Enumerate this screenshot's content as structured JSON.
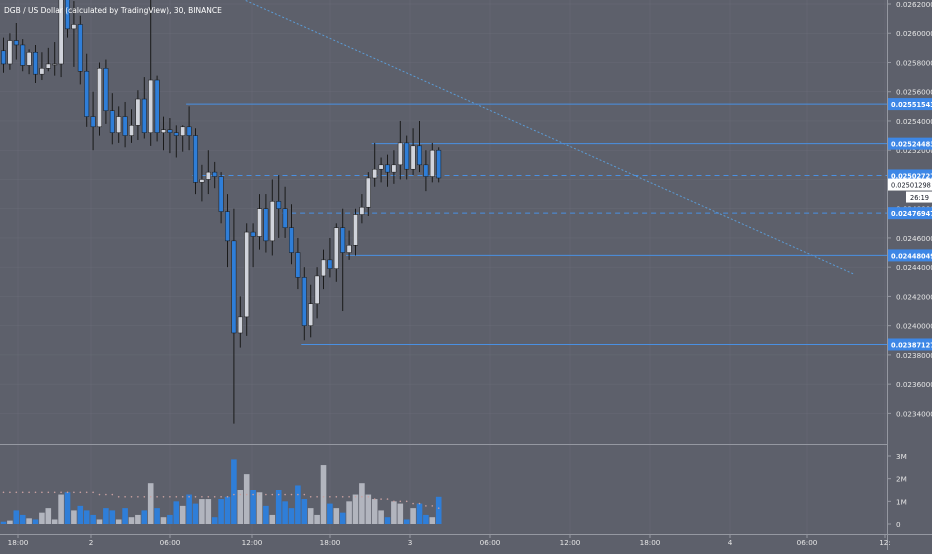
{
  "header": {
    "title": "DGB / US Dollar (calculated by TradingView), 30, BINANCE"
  },
  "colors": {
    "background": "#5d606b",
    "up": "#d1d4dc",
    "down": "#2f7ed8",
    "level_line": "#4a90e2",
    "label_bg": "#3d87e6",
    "last_price_bg": "#ffffff",
    "trendline": "#5b9bd5",
    "grid": "#777a85",
    "axis_text": "#e6e6e6"
  },
  "chart_data": {
    "type": "candlestick",
    "symbol": "DGB / US Dollar",
    "interval": "30",
    "exchange": "BINANCE",
    "ylim": [
      0.0233,
      0.0262
    ],
    "y_ticks": [
      "0.02340000",
      "0.02360000",
      "0.02380000",
      "0.02400000",
      "0.02420000",
      "0.02440000",
      "0.02460000",
      "0.02480000",
      "0.02500000",
      "0.02520000",
      "0.02540000",
      "0.02560000",
      "0.02580000",
      "0.02600000",
      "0.02620000"
    ],
    "x_ticks": [
      "18:00",
      "2",
      "06:00",
      "12:00",
      "18:00",
      "3",
      "06:00",
      "12:00",
      "18:00",
      "4",
      "06:00",
      "12:"
    ],
    "candles": [
      {
        "o": 0.02588,
        "h": 0.02597,
        "l": 0.02573,
        "c": 0.02579
      },
      {
        "o": 0.02579,
        "h": 0.026,
        "l": 0.02575,
        "c": 0.02595
      },
      {
        "o": 0.02595,
        "h": 0.02607,
        "l": 0.02582,
        "c": 0.02592
      },
      {
        "o": 0.02592,
        "h": 0.02596,
        "l": 0.02574,
        "c": 0.02578
      },
      {
        "o": 0.02578,
        "h": 0.02589,
        "l": 0.02572,
        "c": 0.02587
      },
      {
        "o": 0.02587,
        "h": 0.02592,
        "l": 0.02566,
        "c": 0.02572
      },
      {
        "o": 0.02572,
        "h": 0.02587,
        "l": 0.02568,
        "c": 0.02576
      },
      {
        "o": 0.02576,
        "h": 0.0259,
        "l": 0.02574,
        "c": 0.02579
      },
      {
        "o": 0.02579,
        "h": 0.02594,
        "l": 0.02571,
        "c": 0.02579
      },
      {
        "o": 0.02579,
        "h": 0.0263,
        "l": 0.0257,
        "c": 0.02624
      },
      {
        "o": 0.02624,
        "h": 0.02635,
        "l": 0.02597,
        "c": 0.02603
      },
      {
        "o": 0.02603,
        "h": 0.02622,
        "l": 0.02577,
        "c": 0.02606
      },
      {
        "o": 0.02606,
        "h": 0.02612,
        "l": 0.02565,
        "c": 0.02574
      },
      {
        "o": 0.02574,
        "h": 0.02586,
        "l": 0.02536,
        "c": 0.02543
      },
      {
        "o": 0.02543,
        "h": 0.0256,
        "l": 0.0252,
        "c": 0.02536
      },
      {
        "o": 0.02536,
        "h": 0.0258,
        "l": 0.0253,
        "c": 0.02576
      },
      {
        "o": 0.02576,
        "h": 0.02582,
        "l": 0.02538,
        "c": 0.02547
      },
      {
        "o": 0.02547,
        "h": 0.02559,
        "l": 0.02524,
        "c": 0.02532
      },
      {
        "o": 0.02532,
        "h": 0.0255,
        "l": 0.02525,
        "c": 0.02543
      },
      {
        "o": 0.02543,
        "h": 0.02553,
        "l": 0.02522,
        "c": 0.0253
      },
      {
        "o": 0.0253,
        "h": 0.02548,
        "l": 0.02525,
        "c": 0.02537
      },
      {
        "o": 0.02537,
        "h": 0.02561,
        "l": 0.02527,
        "c": 0.02555
      },
      {
        "o": 0.02555,
        "h": 0.0257,
        "l": 0.02528,
        "c": 0.02532
      },
      {
        "o": 0.02532,
        "h": 0.02625,
        "l": 0.02523,
        "c": 0.02568
      },
      {
        "o": 0.02568,
        "h": 0.02571,
        "l": 0.02526,
        "c": 0.02532
      },
      {
        "o": 0.02532,
        "h": 0.02543,
        "l": 0.0252,
        "c": 0.02534
      },
      {
        "o": 0.02534,
        "h": 0.02542,
        "l": 0.02518,
        "c": 0.02532
      },
      {
        "o": 0.02532,
        "h": 0.02537,
        "l": 0.02515,
        "c": 0.0253
      },
      {
        "o": 0.0253,
        "h": 0.02537,
        "l": 0.02519,
        "c": 0.02536
      },
      {
        "o": 0.02536,
        "h": 0.0255,
        "l": 0.0252,
        "c": 0.0253
      },
      {
        "o": 0.0253,
        "h": 0.02535,
        "l": 0.0249,
        "c": 0.02498
      },
      {
        "o": 0.02498,
        "h": 0.0251,
        "l": 0.02485,
        "c": 0.025
      },
      {
        "o": 0.025,
        "h": 0.0252,
        "l": 0.0249,
        "c": 0.02505
      },
      {
        "o": 0.02505,
        "h": 0.02512,
        "l": 0.02494,
        "c": 0.02502
      },
      {
        "o": 0.02502,
        "h": 0.02505,
        "l": 0.0247,
        "c": 0.02478
      },
      {
        "o": 0.02478,
        "h": 0.0249,
        "l": 0.0244,
        "c": 0.02458
      },
      {
        "o": 0.02458,
        "h": 0.0248,
        "l": 0.02333,
        "c": 0.02395
      },
      {
        "o": 0.02395,
        "h": 0.0242,
        "l": 0.02385,
        "c": 0.02406
      },
      {
        "o": 0.02406,
        "h": 0.0247,
        "l": 0.02393,
        "c": 0.02464
      },
      {
        "o": 0.02464,
        "h": 0.0247,
        "l": 0.0244,
        "c": 0.02461
      },
      {
        "o": 0.02461,
        "h": 0.0249,
        "l": 0.02452,
        "c": 0.0248
      },
      {
        "o": 0.0248,
        "h": 0.0249,
        "l": 0.0245,
        "c": 0.02458
      },
      {
        "o": 0.02458,
        "h": 0.025,
        "l": 0.02448,
        "c": 0.02485
      },
      {
        "o": 0.02485,
        "h": 0.02503,
        "l": 0.0246,
        "c": 0.0248
      },
      {
        "o": 0.0248,
        "h": 0.02495,
        "l": 0.0246,
        "c": 0.02467
      },
      {
        "o": 0.02467,
        "h": 0.02483,
        "l": 0.02442,
        "c": 0.0245
      },
      {
        "o": 0.0245,
        "h": 0.0246,
        "l": 0.02425,
        "c": 0.02433
      },
      {
        "o": 0.02433,
        "h": 0.0244,
        "l": 0.0239,
        "c": 0.024
      },
      {
        "o": 0.024,
        "h": 0.02428,
        "l": 0.02392,
        "c": 0.02415
      },
      {
        "o": 0.02415,
        "h": 0.0244,
        "l": 0.02405,
        "c": 0.02434
      },
      {
        "o": 0.02434,
        "h": 0.02452,
        "l": 0.02425,
        "c": 0.02445
      },
      {
        "o": 0.02445,
        "h": 0.0246,
        "l": 0.02433,
        "c": 0.02439
      },
      {
        "o": 0.02439,
        "h": 0.0247,
        "l": 0.0243,
        "c": 0.02467
      },
      {
        "o": 0.02467,
        "h": 0.0248,
        "l": 0.0241,
        "c": 0.0245
      },
      {
        "o": 0.0245,
        "h": 0.02465,
        "l": 0.02445,
        "c": 0.02455
      },
      {
        "o": 0.02455,
        "h": 0.0248,
        "l": 0.02448,
        "c": 0.02476
      },
      {
        "o": 0.02476,
        "h": 0.0249,
        "l": 0.0247,
        "c": 0.02481
      },
      {
        "o": 0.02481,
        "h": 0.02505,
        "l": 0.02475,
        "c": 0.02501
      },
      {
        "o": 0.02501,
        "h": 0.02525,
        "l": 0.02495,
        "c": 0.02507
      },
      {
        "o": 0.02507,
        "h": 0.02515,
        "l": 0.02498,
        "c": 0.0251
      },
      {
        "o": 0.0251,
        "h": 0.02517,
        "l": 0.02495,
        "c": 0.02505
      },
      {
        "o": 0.02505,
        "h": 0.0252,
        "l": 0.02497,
        "c": 0.0251
      },
      {
        "o": 0.0251,
        "h": 0.0254,
        "l": 0.025,
        "c": 0.02525
      },
      {
        "o": 0.02525,
        "h": 0.0253,
        "l": 0.025,
        "c": 0.02507
      },
      {
        "o": 0.02507,
        "h": 0.02535,
        "l": 0.02503,
        "c": 0.02523
      },
      {
        "o": 0.02523,
        "h": 0.0254,
        "l": 0.02505,
        "c": 0.0251
      },
      {
        "o": 0.0251,
        "h": 0.0252,
        "l": 0.02492,
        "c": 0.02502
      },
      {
        "o": 0.02502,
        "h": 0.02525,
        "l": 0.02498,
        "c": 0.0252
      },
      {
        "o": 0.0252,
        "h": 0.02522,
        "l": 0.02498,
        "c": 0.02501
      }
    ],
    "volume": {
      "axis_ticks": [
        "3M",
        "2M",
        "1M",
        "0"
      ],
      "max": 3200000,
      "values": [
        100000,
        150000,
        600000,
        400000,
        250000,
        200000,
        500000,
        700000,
        200000,
        1300000,
        1400000,
        600000,
        800000,
        600000,
        400000,
        200000,
        700000,
        600000,
        200000,
        700000,
        300000,
        400000,
        600000,
        1800000,
        700000,
        300000,
        400000,
        1000000,
        800000,
        1300000,
        900000,
        1100000,
        1100000,
        300000,
        1100000,
        1200000,
        2850000,
        1500000,
        2200000,
        1500000,
        1400000,
        800000,
        400000,
        1500000,
        1000000,
        700000,
        1700000,
        1100000,
        700000,
        400000,
        2600000,
        900000,
        700000,
        500000,
        1000000,
        1300000,
        1800000,
        1300000,
        1100000,
        600000,
        300000,
        1000000,
        900000,
        200000,
        700000,
        900000,
        400000,
        300000,
        1200000
      ],
      "ma": [
        1400000,
        1400000,
        1400000,
        1400000,
        1400000,
        1400000,
        1400000,
        1400000,
        1400000,
        1400000,
        1400000,
        1400000,
        1400000,
        1400000,
        1400000,
        1300000,
        1300000,
        1300000,
        1200000,
        1200000,
        1200000,
        1200000,
        1200000,
        1200000,
        1200000,
        1200000,
        1200000,
        1200000,
        1200000,
        1200000,
        1200000,
        1200000,
        1200000,
        1200000,
        1200000,
        1200000,
        1300000,
        1300000,
        1300000,
        1300000,
        1300000,
        1300000,
        1300000,
        1300000,
        1300000,
        1300000,
        1300000,
        1300000,
        1200000,
        1200000,
        1200000,
        1200000,
        1200000,
        1200000,
        1200000,
        1200000,
        1200000,
        1200000,
        1100000,
        1100000,
        1100000,
        1000000,
        1000000,
        1000000,
        900000,
        900000,
        800000,
        800000,
        700000
      ]
    },
    "levels": [
      {
        "value": "0.02551543",
        "price": 0.02551543,
        "style": "solid",
        "from_index": 29
      },
      {
        "value": "0.02524483",
        "price": 0.02524483,
        "style": "solid",
        "from_index": 58
      },
      {
        "value": "0.02502727",
        "price": 0.02502727,
        "style": "dashed",
        "from_index": 30
      },
      {
        "value": "0.02476947",
        "price": 0.02476947,
        "style": "dashed",
        "from_index": 44
      },
      {
        "value": "0.02448049",
        "price": 0.02448049,
        "style": "solid",
        "from_index": 54
      },
      {
        "value": "0.02387127",
        "price": 0.02387127,
        "style": "solid",
        "from_index": 47
      }
    ],
    "last_price": {
      "value": "0.02501298",
      "price": 0.02501298,
      "countdown": "26:19"
    },
    "trendline": {
      "from_index": 35,
      "from_price": 0.02628,
      "to_index": 133,
      "to_price": 0.02435
    }
  }
}
